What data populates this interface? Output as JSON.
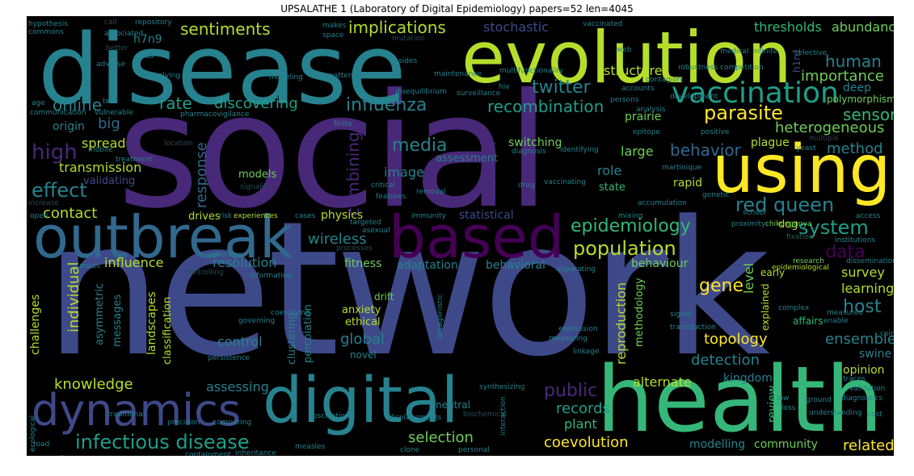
{
  "title": "UPSALATHE 1 (Laboratory of Digital Epidemiology) papers=52 len=4045",
  "palette": {
    "yellow": "#fde725",
    "lime": "#b5de2b",
    "green": "#6ece58",
    "sea": "#35b779",
    "teal": "#1f9e89",
    "cyan": "#26828e",
    "steel": "#31688e",
    "indigo": "#3e4989",
    "violet": "#482878",
    "purple": "#440154",
    "dim1": "#2a4a55",
    "dim2": "#3a3a5a",
    "dim3": "#2f5f4f"
  },
  "words": {
    "network": "network",
    "social": "social",
    "disease": "disease",
    "evolution": "evolution",
    "health": "health",
    "using": "using",
    "outbreak": "outbreak",
    "based": "based",
    "digital": "digital",
    "dynamics": "dynamics",
    "vaccination": "vaccination",
    "infectious_disease": "infectious disease",
    "epidemiology": "epidemiology",
    "population": "population",
    "system": "system",
    "red_queen": "red queen",
    "parasite": "parasite",
    "human": "human",
    "twitter": "twitter",
    "recombination": "recombination",
    "influenza": "influenza",
    "discovering": "discovering",
    "rate": "rate",
    "online": "online",
    "sentiments": "sentiments",
    "implications": "implications",
    "high": "high",
    "effect": "effect",
    "media": "media",
    "image": "image",
    "sexual": "sexual",
    "combining": "combining",
    "response": "response",
    "big": "big",
    "spread": "spread",
    "transmission": "transmission",
    "contact": "contact",
    "behavior": "behavior",
    "sensor": "sensor",
    "heterogeneous": "heterogeneous",
    "method": "method",
    "importance": "importance",
    "abundance": "abundance",
    "thresholds": "thresholds",
    "stochastic": "stochastic",
    "structure": "structure",
    "wireless": "wireless",
    "data": "data",
    "gene": "gene",
    "host": "host",
    "survey": "survey",
    "learning": "learning",
    "ensemble": "ensemble",
    "topology": "topology",
    "detection": "detection",
    "public": "public",
    "records": "records",
    "plant": "plant",
    "selection": "selection",
    "coevolution": "coevolution",
    "related": "related",
    "community": "community",
    "modelling": "modelling",
    "review": "review",
    "alternate": "alternate",
    "kingdom": "kingdom",
    "opinion": "opinion",
    "swine": "swine",
    "global": "global",
    "control": "control",
    "knowledge": "knowledge",
    "assessing": "assessing",
    "individual": "individual",
    "influence": "influence",
    "resolution": "resolution",
    "fitness": "fitness",
    "adaptation": "adaptation",
    "behavioral": "behavioral",
    "behaviour": "behaviour",
    "physics": "physics",
    "statistical": "statistical",
    "drives": "drives",
    "models": "models",
    "validating": "validating",
    "assessment": "assessment",
    "switching": "switching",
    "role": "role",
    "state": "state",
    "rapid": "rapid",
    "dog": "dog",
    "large": "large",
    "prairie": "prairie",
    "plague": "plague",
    "polymorphism": "polymorphism",
    "deep": "deep",
    "h1n1": "h1n1",
    "h7n9": "h7n9",
    "origin": "origin",
    "challenges": "challenges",
    "messages": "messages",
    "asymmetric": "asymmetric",
    "landscapes": "landscapes",
    "classification": "classification",
    "clustering": "clustering",
    "percolation": "percolation",
    "anxiety": "anxiety",
    "ethical": "ethical",
    "novel": "novel",
    "drift": "drift",
    "neutral": "neutral",
    "reproduction": "reproduction",
    "methodology": "methodology",
    "level": "level",
    "early": "early",
    "explained": "explained",
    "affairs": "affairs",
    "hypothesis": "hypothesis",
    "commons": "commons",
    "call": "call",
    "repository": "repository",
    "associated": "associated",
    "makes": "makes",
    "space": "space",
    "mutation": "mutation",
    "vaccinated": "vaccinated",
    "web": "web",
    "medical": "medical",
    "better": "better",
    "lead": "lead",
    "adverse": "adverse",
    "underlying": "underlying",
    "modeling": "modeling",
    "patterns": "patterns",
    "sides": "sides",
    "maintenance": "maintenance",
    "multifunctionality": "multifunctionality",
    "robustness": "robustness",
    "competition": "competition",
    "contagion": "contagion",
    "accounts": "accounts",
    "hiv": "hiv",
    "selective": "selective",
    "development": "development",
    "infinite": "infinite",
    "surveillance": "surveillance",
    "disequilibrium": "disequilibrium",
    "persons": "persons",
    "analysis": "analysis",
    "positive": "positive",
    "yeast": "yeast",
    "multiple": "multiple",
    "pharmacovigilance": "pharmacovigilance",
    "finite": "finite",
    "vulnerable": "vulnerable",
    "communication": "communication",
    "age": "age",
    "two": "two",
    "treatment": "treatment",
    "location": "location",
    "mobile": "mobile",
    "diagnosis": "diagnosis",
    "identifying": "identifying",
    "martinique": "martinique",
    "epitope": "epitope",
    "accumulation": "accumulation",
    "signaling": "signaling",
    "critical": "critical",
    "features": "features",
    "drug": "drug",
    "vaccinating": "vaccinating",
    "removal": "removal",
    "genetic": "genetic",
    "chikungunya": "chikungunya",
    "access": "access",
    "school": "school",
    "proximity": "proximity",
    "mixing": "mixing",
    "targeted": "targeted",
    "asexual": "asexual",
    "immunity": "immunity",
    "experiences": "experiences",
    "cases": "cases",
    "risk": "risk",
    "increase": "increase",
    "open": "open",
    "fixation": "fixation",
    "institutions": "institutions",
    "research": "research",
    "epidemiological": "epidemiological",
    "dissemination": "dissemination",
    "separating": "separating",
    "coverage": "coverage",
    "causes": "causes",
    "controlling": "controlling",
    "information": "information",
    "processes": "processes",
    "governing": "governing",
    "coevolving": "coevolving",
    "persistence": "persistence",
    "ecological": "ecological",
    "antagonistic": "antagonistic",
    "expression": "expression",
    "measuring": "measuring",
    "linkage": "linkage",
    "transduction": "transduction",
    "signal": "signal",
    "complex": "complex",
    "enable": "enable",
    "measured": "measured",
    "traces": "traces",
    "validation": "validation",
    "coin": "coin",
    "diagnostics": "diagnostics",
    "ground": "ground",
    "understanding": "understanding",
    "cost": "cost",
    "loss": "loss",
    "low": "low",
    "oscillations": "oscillations",
    "displacements": "displacements",
    "synthesizing": "synthesizing",
    "traditional": "traditional",
    "precision": "precision",
    "comparing": "comparing",
    "road": "road",
    "cells": "cells",
    "containment": "containment",
    "inheritance": "inheritance",
    "measles": "measles",
    "herd": "herd",
    "epistasis": "epistasis",
    "assortativity": "assortativity",
    "assess": "assess",
    "clone": "clone",
    "personal": "personal",
    "biochemical": "biochemical",
    "interaction": "interaction"
  }
}
